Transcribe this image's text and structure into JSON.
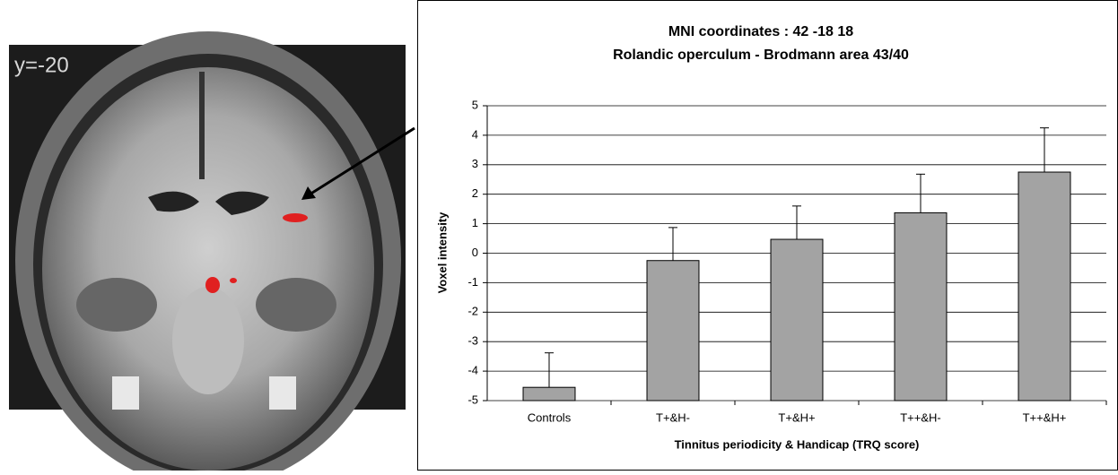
{
  "image": {
    "label": "y=-20"
  },
  "chart_data": {
    "type": "bar",
    "title": "MNI coordinates : 42 -18 18",
    "subtitle": "Rolandic operculum - Brodmann area 43/40",
    "y_label": "Voxel intensity",
    "x_label": "Tinnitus periodicity & Handicap (TRQ score)",
    "categories": [
      "Controls",
      "T+&H-",
      "T+&H+",
      "T++&H-",
      "T++&H+"
    ],
    "values": [
      -4.55,
      -0.25,
      0.47,
      1.37,
      2.75
    ],
    "errors": [
      1.17,
      1.12,
      1.13,
      1.31,
      1.5
    ],
    "color": "#a3a3a3",
    "ylim": [
      -5,
      5
    ],
    "yticks": [
      -5,
      -4,
      -3,
      -2,
      -1,
      0,
      1,
      2,
      3,
      4,
      5
    ],
    "grid": true
  }
}
